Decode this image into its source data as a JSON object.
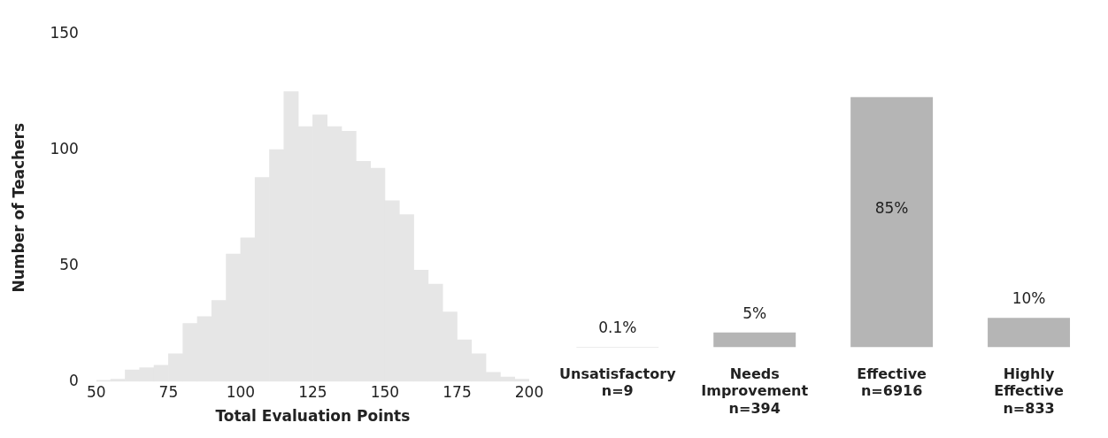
{
  "chart_data": [
    {
      "type": "histogram",
      "xlabel": "Total Evaluation Points",
      "ylabel": "Number of Teachers",
      "color": "#e6e6e6",
      "bins": [
        50,
        55,
        60,
        65,
        70,
        75,
        80,
        85,
        90,
        95,
        100,
        105,
        110,
        115,
        120,
        125,
        130,
        135,
        140,
        145,
        150,
        155,
        160,
        165,
        170,
        175,
        180,
        185,
        190,
        195,
        200
      ],
      "values": [
        0.5,
        1,
        5,
        6,
        7,
        12,
        25,
        28,
        35,
        55,
        62,
        88,
        100,
        125,
        110,
        115,
        110,
        108,
        95,
        92,
        78,
        72,
        48,
        42,
        30,
        18,
        12,
        4,
        2,
        1
      ],
      "xlim": [
        50,
        200
      ],
      "xticks": [
        50,
        75,
        100,
        125,
        150,
        175,
        200
      ],
      "ylim": [
        0,
        150
      ],
      "yticks": [
        0,
        50,
        100,
        150
      ]
    },
    {
      "type": "bar",
      "categories": [
        "Unsatisfactory\nn=9",
        "Needs\nImprovement\nn=394",
        "Effective\nn=6916",
        "Highly\nEffective\nn=833"
      ],
      "color": "#b5b5b5",
      "values": [
        0.1,
        5,
        85,
        10
      ],
      "value_labels": [
        "0.1%",
        "5%",
        "85%",
        "10%"
      ],
      "tick_labels": "x"
    }
  ]
}
